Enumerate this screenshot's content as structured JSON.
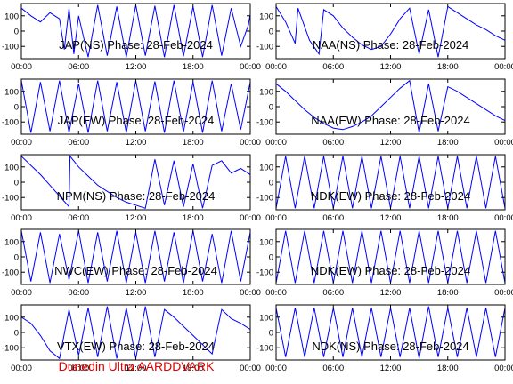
{
  "footer": "Dunedin Ultra AARDDVARK",
  "colors": {
    "trace": "#0000ff",
    "axis": "#000000",
    "footer": "#e00000"
  },
  "chart_data": [
    {
      "type": "line",
      "title": "JAP(NS) Phase: 28-Feb-2024",
      "x_ticks": [
        "00:00",
        "06:00",
        "12:00",
        "18:00",
        "00:00"
      ],
      "y_ticks": [
        "100",
        "0",
        "-100"
      ],
      "ylim": [
        -180,
        180
      ],
      "x_hours": [
        0,
        1,
        2,
        3,
        4,
        4.5,
        5,
        5.5,
        6,
        7,
        8,
        9,
        10,
        11,
        12,
        13,
        14,
        15,
        16,
        17,
        18,
        19,
        20,
        21,
        22,
        23,
        23.8,
        24
      ],
      "y_values": [
        150,
        100,
        60,
        120,
        80,
        -120,
        150,
        -150,
        100,
        -170,
        170,
        -160,
        160,
        -170,
        170,
        -160,
        165,
        -170,
        170,
        -165,
        160,
        -170,
        170,
        -160,
        150,
        -100,
        40,
        110
      ]
    },
    {
      "type": "line",
      "title": "NAA(NS) Phase: 28-Feb-2024",
      "x_ticks": [
        "00:00",
        "06:00",
        "12:00",
        "18:00",
        "00:00"
      ],
      "y_ticks": [
        "100",
        "0",
        "-100"
      ],
      "ylim": [
        -180,
        180
      ],
      "x_hours": [
        0,
        1,
        2,
        2.3,
        3.5,
        4.5,
        5,
        6,
        7,
        8,
        9,
        10,
        11,
        12,
        13,
        14,
        15,
        16,
        17,
        18,
        19,
        20,
        21,
        22,
        23,
        24
      ],
      "y_values": [
        160,
        60,
        -80,
        150,
        -60,
        -150,
        140,
        100,
        20,
        -40,
        -90,
        -120,
        -100,
        -20,
        80,
        150,
        -150,
        140,
        -170,
        160,
        120,
        80,
        40,
        10,
        -30,
        -60
      ]
    },
    {
      "type": "line",
      "title": "JAP(EW) Phase: 28-Feb-2024",
      "x_ticks": [
        "00:00",
        "06:00",
        "12:00",
        "18:00",
        "00:00"
      ],
      "y_ticks": [
        "100",
        "0",
        "-100"
      ],
      "ylim": [
        -180,
        180
      ],
      "x_hours": [
        0,
        1,
        2,
        3,
        4,
        5,
        6,
        7,
        8,
        9,
        10,
        11,
        12,
        13,
        14,
        15,
        16,
        17,
        18,
        19,
        20,
        21,
        22,
        23,
        24
      ],
      "y_values": [
        170,
        -170,
        160,
        -160,
        170,
        -170,
        150,
        -170,
        170,
        -160,
        160,
        -170,
        170,
        -160,
        165,
        -170,
        170,
        -165,
        160,
        -170,
        170,
        -160,
        150,
        -150,
        160
      ]
    },
    {
      "type": "line",
      "title": "NAA(EW) Phase: 28-Feb-2024",
      "x_ticks": [
        "00:00",
        "06:00",
        "12:00",
        "18:00",
        "00:00"
      ],
      "y_ticks": [
        "100",
        "0",
        "-100"
      ],
      "ylim": [
        -180,
        180
      ],
      "x_hours": [
        0,
        1,
        2,
        3,
        4,
        5,
        6,
        7,
        8,
        9,
        10,
        11,
        12,
        13,
        14,
        15,
        16,
        17,
        18,
        19,
        20,
        21,
        22,
        23,
        24
      ],
      "y_values": [
        150,
        100,
        40,
        -20,
        -70,
        -110,
        -140,
        -150,
        -130,
        -100,
        -60,
        0,
        60,
        120,
        170,
        -170,
        150,
        -160,
        130,
        100,
        60,
        20,
        -20,
        -60,
        -90
      ]
    },
    {
      "type": "line",
      "title": "NPM(NS) Phase: 28-Feb-2024",
      "x_ticks": [
        "00:00",
        "06:00",
        "12:00",
        "18:00",
        "00:00"
      ],
      "y_ticks": [
        "100",
        "0",
        "-100"
      ],
      "ylim": [
        -180,
        180
      ],
      "x_hours": [
        0,
        1,
        2,
        3,
        4,
        5,
        5.1,
        6,
        7,
        8,
        9,
        10,
        11,
        12,
        13,
        14,
        15,
        16,
        17,
        18,
        19,
        20,
        21,
        22,
        23,
        24
      ],
      "y_values": [
        170,
        110,
        50,
        -20,
        -90,
        -160,
        170,
        100,
        40,
        -20,
        -60,
        -100,
        -130,
        -150,
        -170,
        150,
        -150,
        140,
        -160,
        120,
        -170,
        110,
        140,
        60,
        90,
        50
      ]
    },
    {
      "type": "line",
      "title": "NDK(EW) Phase: 28-Feb-2024",
      "x_ticks": [
        "00:00",
        "06:00",
        "12:00",
        "18:00",
        "00:00"
      ],
      "y_ticks": [
        "100",
        "0",
        "-100"
      ],
      "ylim": [
        -180,
        180
      ],
      "x_hours": [
        0,
        1,
        2,
        3,
        4,
        5,
        6,
        7,
        8,
        9,
        10,
        11,
        12,
        13,
        14,
        15,
        16,
        17,
        18,
        19,
        20,
        21,
        22,
        23,
        24
      ],
      "y_values": [
        -170,
        170,
        -170,
        170,
        -170,
        170,
        -170,
        170,
        -170,
        170,
        -170,
        170,
        -170,
        170,
        -170,
        170,
        -170,
        170,
        -170,
        170,
        -170,
        170,
        -170,
        170,
        -170
      ]
    },
    {
      "type": "line",
      "title": "NWC(EW) Phase: 28-Feb-2024",
      "x_ticks": [
        "00:00",
        "06:00",
        "12:00",
        "18:00",
        "00:00"
      ],
      "y_ticks": [
        "100",
        "0",
        "-100"
      ],
      "ylim": [
        -180,
        180
      ],
      "x_hours": [
        0,
        1,
        2,
        3,
        4,
        5,
        6,
        7,
        8,
        9,
        10,
        11,
        12,
        13,
        14,
        15,
        16,
        17,
        18,
        19,
        20,
        21,
        22,
        23,
        24
      ],
      "y_values": [
        170,
        -160,
        160,
        -170,
        150,
        -150,
        170,
        -170,
        160,
        -160,
        170,
        -170,
        160,
        -170,
        170,
        -160,
        160,
        -170,
        170,
        -160,
        150,
        -170,
        170,
        -160,
        160
      ]
    },
    {
      "type": "line",
      "title": "NDK(EW) Phase: 28-Feb-2024",
      "x_ticks": [
        "00:00",
        "06:00",
        "12:00",
        "18:00",
        "00:00"
      ],
      "y_ticks": [
        "100",
        "0",
        "-100"
      ],
      "ylim": [
        -180,
        180
      ],
      "x_hours": [
        0,
        1,
        2,
        3,
        4,
        5,
        6,
        7,
        8,
        9,
        10,
        11,
        12,
        13,
        14,
        15,
        16,
        17,
        18,
        19,
        20,
        21,
        22,
        23,
        24
      ],
      "y_values": [
        -170,
        170,
        -170,
        170,
        -170,
        170,
        -170,
        170,
        -170,
        170,
        -170,
        170,
        -170,
        170,
        -170,
        170,
        -170,
        170,
        -170,
        170,
        -170,
        170,
        -170,
        170,
        -170
      ]
    },
    {
      "type": "line",
      "title": "VTX(EW) Phase: 28-Feb-2024",
      "x_ticks": [
        "00:00",
        "06:00",
        "12:00",
        "18:00",
        "00:00"
      ],
      "y_ticks": [
        "100",
        "0",
        "-100"
      ],
      "ylim": [
        -180,
        180
      ],
      "x_hours": [
        0,
        1,
        2,
        3,
        4,
        5,
        6,
        7,
        8,
        9,
        10,
        11,
        12,
        13,
        14,
        15,
        16,
        17,
        18,
        19,
        20,
        21,
        22,
        23,
        24
      ],
      "y_values": [
        100,
        60,
        -20,
        -120,
        -170,
        150,
        -150,
        160,
        -160,
        170,
        -170,
        160,
        -170,
        170,
        -160,
        150,
        100,
        40,
        -20,
        -80,
        -140,
        150,
        90,
        60,
        20
      ]
    },
    {
      "type": "line",
      "title": "NDK(NS) Phase: 28-Feb-2024",
      "x_ticks": [
        "00:00",
        "06:00",
        "12:00",
        "18:00",
        "00:00"
      ],
      "y_ticks": [
        "100",
        "0",
        "-100"
      ],
      "ylim": [
        -180,
        180
      ],
      "x_hours": [
        0,
        1,
        2,
        3,
        4,
        5,
        6,
        7,
        8,
        9,
        10,
        11,
        12,
        13,
        14,
        15,
        16,
        17,
        18,
        19,
        20,
        21,
        22,
        23,
        24
      ],
      "y_values": [
        160,
        -160,
        160,
        -160,
        160,
        -160,
        160,
        -160,
        160,
        -160,
        160,
        -160,
        160,
        -160,
        160,
        -170,
        170,
        -160,
        160,
        -160,
        160,
        -160,
        160,
        -160,
        160
      ]
    }
  ]
}
